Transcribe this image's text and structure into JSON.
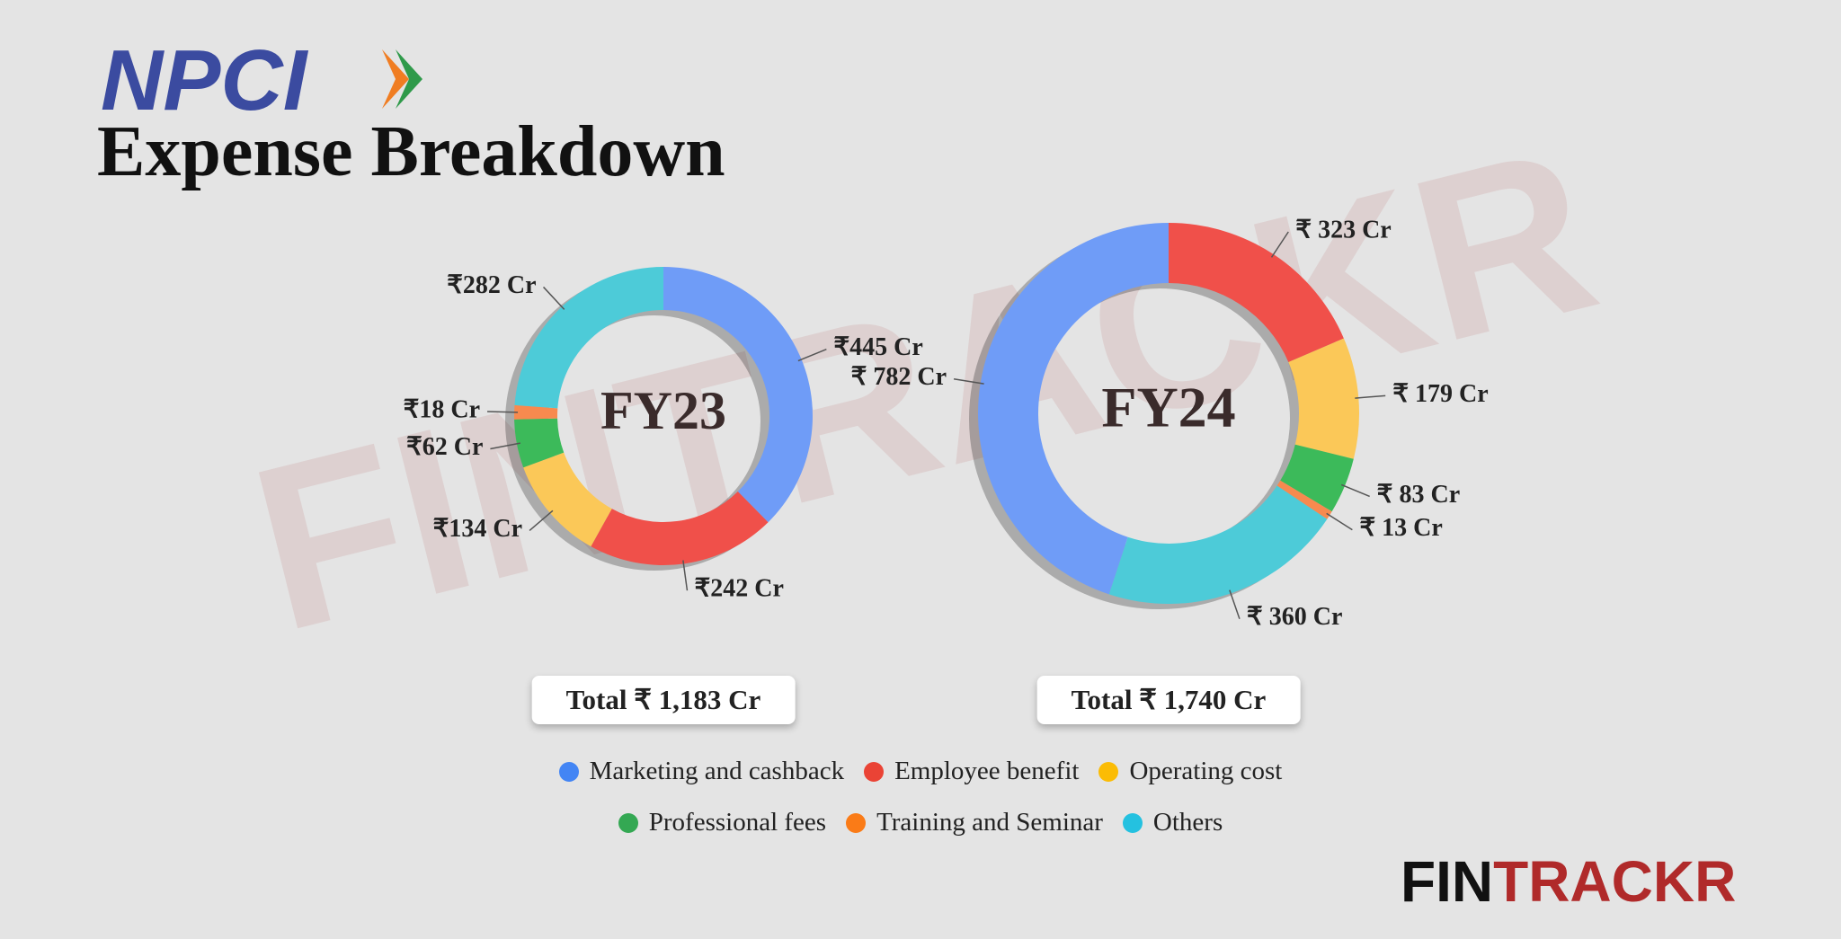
{
  "header": {
    "logo": "NPCI",
    "title": "Expense Breakdown"
  },
  "watermark": "FINTRACKR",
  "brand": {
    "dark": "FIN",
    "red": "TRACKR"
  },
  "chart_data": {
    "type": "donut",
    "categories": [
      "Marketing and cashback",
      "Employee benefit",
      "Operating cost",
      "Professional fees",
      "Training and Seminar",
      "Others"
    ],
    "colors": [
      "#6f9cf7",
      "#f0504a",
      "#fbc858",
      "#3cba5a",
      "#f78a4f",
      "#4dcbd8"
    ],
    "legend_colors": [
      "#4385f4",
      "#ea4335",
      "#fbbc05",
      "#34a853",
      "#fa7b17",
      "#24c1e0"
    ],
    "series": [
      {
        "name": "FY23",
        "values": [
          445,
          242,
          134,
          62,
          18,
          282
        ],
        "value_labels": [
          "₹445 Cr",
          "₹242 Cr",
          "₹134 Cr",
          "₹62 Cr",
          "₹18 Cr",
          "₹282 Cr"
        ],
        "total": "Total ₹ 1,183 Cr"
      },
      {
        "name": "FY24",
        "values": [
          782,
          323,
          179,
          83,
          13,
          360
        ],
        "value_labels": [
          "₹ 782 Cr",
          "₹ 323 Cr",
          "₹ 179 Cr",
          "₹ 83 Cr",
          "₹ 13 Cr",
          "₹ 360 Cr"
        ],
        "total": "Total ₹ 1,740 Cr"
      }
    ]
  }
}
